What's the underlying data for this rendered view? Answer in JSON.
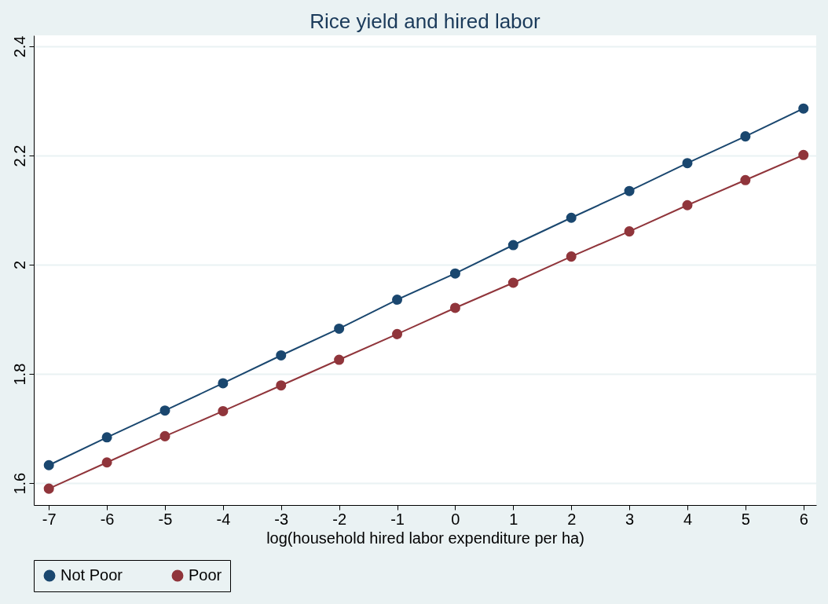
{
  "chart_data": {
    "type": "line",
    "title": "Rice yield and hired labor",
    "xlabel": "log(household hired labor expenditure per ha)",
    "x": [
      -7,
      -6,
      -5,
      -4,
      -3,
      -2,
      -1,
      0,
      1,
      2,
      3,
      4,
      5,
      6
    ],
    "series": [
      {
        "name": "Not Poor",
        "color": "#1a476f",
        "values": [
          1.633,
          1.684,
          1.733,
          1.783,
          1.834,
          1.883,
          1.936,
          1.984,
          2.036,
          2.086,
          2.135,
          2.186,
          2.235,
          2.286
        ]
      },
      {
        "name": "Poor",
        "color": "#90353b",
        "values": [
          1.59,
          1.638,
          1.686,
          1.732,
          1.779,
          1.826,
          1.873,
          1.921,
          1.967,
          2.015,
          2.061,
          2.109,
          2.155,
          2.201
        ]
      }
    ],
    "xlim": [
      -7.26,
      6.22
    ],
    "xticks": [
      -7,
      -6,
      -5,
      -4,
      -3,
      -2,
      -1,
      0,
      1,
      2,
      3,
      4,
      5,
      6
    ],
    "ylim": [
      1.56,
      2.42
    ],
    "yticks": [
      1.6,
      1.8,
      2,
      2.2,
      2.4
    ],
    "grid": "y",
    "legend": "bottom",
    "marker": "circle",
    "line_style": "solid"
  }
}
